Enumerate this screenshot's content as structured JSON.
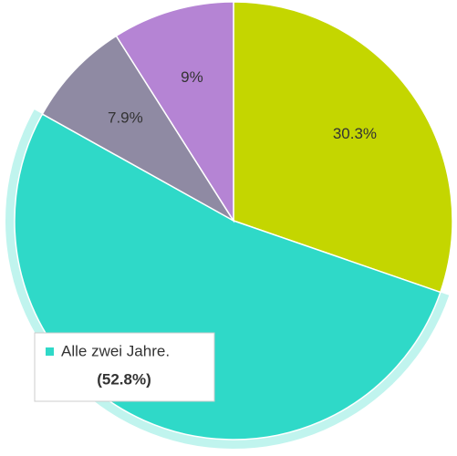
{
  "chart_data": {
    "type": "pie",
    "categories": [
      null,
      "Alle zwei Jahre.",
      null,
      null
    ],
    "values": [
      30.3,
      52.8,
      7.9,
      9
    ],
    "value_labels": [
      "30.3%",
      "(52.8%)",
      "7.9%",
      "9%"
    ],
    "colors": [
      "#c4d600",
      "#2fd9c8",
      "#8f8aa3",
      "#b584d4"
    ]
  }
}
